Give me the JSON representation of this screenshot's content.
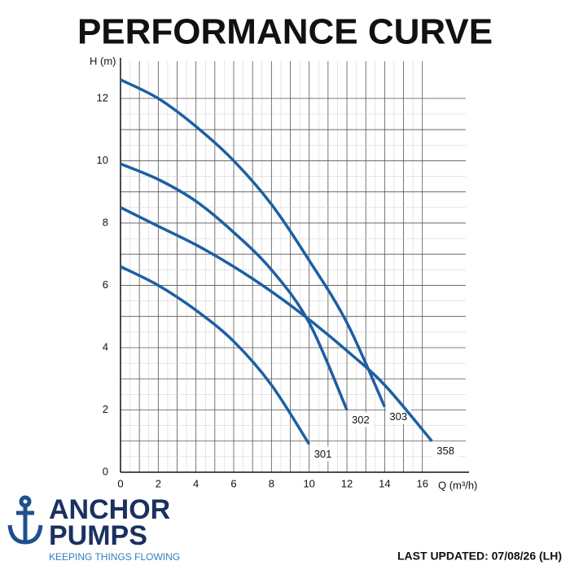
{
  "chart_data": {
    "type": "line",
    "title": "PERFORMANCE CURVE",
    "y_label": "H (m)",
    "x_label": "Q (m³/h)",
    "xlim": [
      0,
      18.3
    ],
    "ylim": [
      0,
      13.2
    ],
    "xticks": [
      0,
      2,
      4,
      6,
      8,
      10,
      12,
      14,
      16
    ],
    "yticks": [
      0,
      2,
      4,
      6,
      8,
      10,
      12
    ],
    "grid": true,
    "series": [
      {
        "name": "301",
        "color": "#1d5fa3",
        "x": [
          0,
          2,
          4,
          6,
          8,
          10
        ],
        "values": [
          6.6,
          6.0,
          5.2,
          4.2,
          2.8,
          0.9
        ]
      },
      {
        "name": "302",
        "color": "#1d5fa3",
        "x": [
          0,
          2,
          4,
          6,
          8,
          10,
          12
        ],
        "values": [
          9.9,
          9.4,
          8.7,
          7.7,
          6.5,
          4.8,
          2.0
        ]
      },
      {
        "name": "303",
        "color": "#1d5fa3",
        "x": [
          0,
          2,
          4,
          6,
          8,
          10,
          12,
          14
        ],
        "values": [
          12.6,
          12.0,
          11.1,
          10.0,
          8.6,
          6.8,
          4.8,
          2.1
        ]
      },
      {
        "name": "358",
        "color": "#1d5fa3",
        "x": [
          0,
          2,
          4,
          6,
          8,
          10,
          12,
          14,
          16.5
        ],
        "values": [
          8.5,
          7.9,
          7.3,
          6.6,
          5.8,
          4.9,
          3.9,
          2.8,
          1.0
        ]
      }
    ]
  },
  "logo": {
    "line1": "ANCHOR",
    "line2": "PUMPS",
    "tagline": "KEEPING THINGS FLOWING"
  },
  "footer": "LAST UPDATED: 07/08/26 (LH)"
}
